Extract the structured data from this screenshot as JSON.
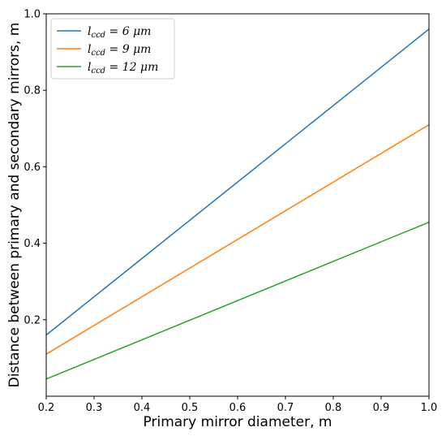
{
  "chart_data": {
    "type": "line",
    "xlabel": "Primary mirror diameter, m",
    "ylabel": "Distance between primary and secondary mirrors, m",
    "xlim": [
      0.2,
      1.0
    ],
    "ylim": [
      0.0,
      1.0
    ],
    "x_ticks": [
      0.2,
      0.3,
      0.4,
      0.5,
      0.6,
      0.7,
      0.8,
      0.9,
      1.0
    ],
    "x_tick_labels": [
      "0.2",
      "0.3",
      "0.4",
      "0.5",
      "0.6",
      "0.7",
      "0.8",
      "0.9",
      "1.0"
    ],
    "y_ticks": [
      0.2,
      0.4,
      0.6,
      0.8,
      1.0
    ],
    "y_tick_labels": [
      "0.2",
      "0.4",
      "0.6",
      "0.8",
      "1.0"
    ],
    "grid": false,
    "legend_position": "top-left",
    "series": [
      {
        "name": "l_ccd = 6 μm",
        "legend_base": "l",
        "legend_sub": "ccd",
        "legend_rest": " = 6 μm",
        "color": "#1f77b4",
        "x": [
          0.2,
          1.0
        ],
        "y": [
          0.16,
          0.96
        ]
      },
      {
        "name": "l_ccd = 9 μm",
        "legend_base": "l",
        "legend_sub": "ccd",
        "legend_rest": " = 9 μm",
        "color": "#ff7f0e",
        "x": [
          0.2,
          1.0
        ],
        "y": [
          0.11,
          0.71
        ]
      },
      {
        "name": "l_ccd = 12 μm",
        "legend_base": "l",
        "legend_sub": "ccd",
        "legend_rest": " = 12 μm",
        "color": "#2ca02c",
        "x": [
          0.2,
          1.0
        ],
        "y": [
          0.045,
          0.455
        ]
      }
    ]
  }
}
